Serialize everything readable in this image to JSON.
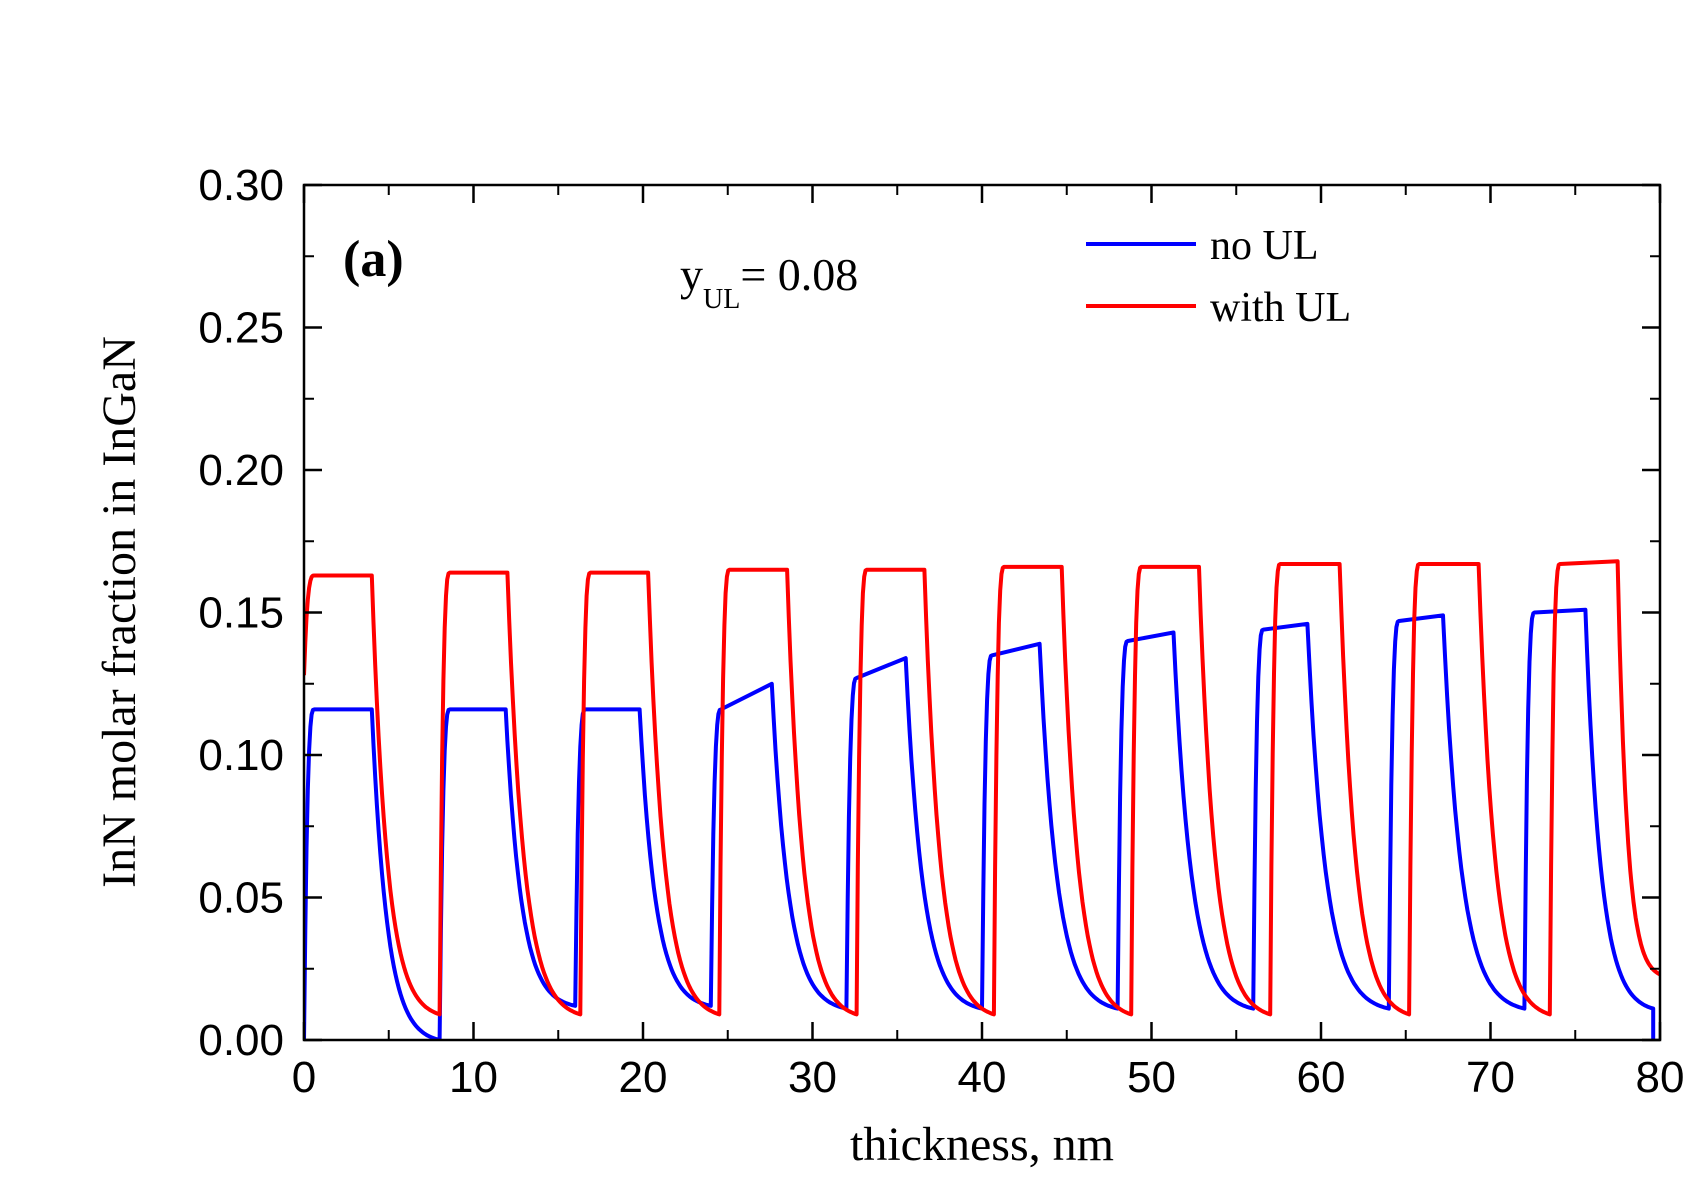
{
  "chart_data": {
    "type": "line",
    "title": "",
    "panel_label": "(a)",
    "annotation": {
      "main": "y",
      "subscript": "UL",
      "rest": "= 0.08"
    },
    "xlabel": "thickness, nm",
    "ylabel": "InN molar fraction in InGaN",
    "xlim": [
      0,
      80
    ],
    "ylim": [
      0,
      0.3
    ],
    "xticks": [
      0,
      10,
      20,
      30,
      40,
      50,
      60,
      70,
      80
    ],
    "xtick_labels": [
      "0",
      "10",
      "20",
      "30",
      "40",
      "50",
      "60",
      "70",
      "80"
    ],
    "yticks": [
      0.0,
      0.05,
      0.1,
      0.15,
      0.2,
      0.25,
      0.3
    ],
    "ytick_labels": [
      "0.00",
      "0.05",
      "0.10",
      "0.15",
      "0.20",
      "0.25",
      "0.30"
    ],
    "grid": false,
    "legend_position": "top-right",
    "series": [
      {
        "name": "no UL",
        "color": "#0000ff",
        "wells": [
          {
            "start": 0.0,
            "end": 4.0,
            "top_start": 0.116,
            "top_end": 0.116,
            "bottom": 0.0
          },
          {
            "start": 8.0,
            "end": 11.9,
            "top_start": 0.116,
            "top_end": 0.116,
            "bottom": 0.012
          },
          {
            "start": 16.0,
            "end": 19.8,
            "top_start": 0.116,
            "top_end": 0.116,
            "bottom": 0.012
          },
          {
            "start": 24.0,
            "end": 27.6,
            "top_start": 0.116,
            "top_end": 0.125,
            "bottom": 0.011
          },
          {
            "start": 32.0,
            "end": 35.5,
            "top_start": 0.127,
            "top_end": 0.134,
            "bottom": 0.011
          },
          {
            "start": 40.0,
            "end": 43.4,
            "top_start": 0.135,
            "top_end": 0.139,
            "bottom": 0.011
          },
          {
            "start": 48.0,
            "end": 51.3,
            "top_start": 0.14,
            "top_end": 0.143,
            "bottom": 0.011
          },
          {
            "start": 56.0,
            "end": 59.2,
            "top_start": 0.144,
            "top_end": 0.146,
            "bottom": 0.011
          },
          {
            "start": 64.0,
            "end": 67.2,
            "top_start": 0.147,
            "top_end": 0.149,
            "bottom": 0.011
          },
          {
            "start": 72.0,
            "end": 75.6,
            "top_start": 0.15,
            "top_end": 0.151,
            "bottom": 0.011
          }
        ],
        "end_x": 79.6,
        "end_value": 0.011
      },
      {
        "name": "with UL",
        "color": "#ff0000",
        "start_value": 0.128,
        "wells": [
          {
            "start": 0.0,
            "end": 4.0,
            "top_start": 0.163,
            "top_end": 0.163,
            "bottom": 0.009
          },
          {
            "start": 8.0,
            "end": 12.0,
            "top_start": 0.164,
            "top_end": 0.164,
            "bottom": 0.009
          },
          {
            "start": 16.3,
            "end": 20.3,
            "top_start": 0.164,
            "top_end": 0.164,
            "bottom": 0.009
          },
          {
            "start": 24.5,
            "end": 28.5,
            "top_start": 0.165,
            "top_end": 0.165,
            "bottom": 0.009
          },
          {
            "start": 32.6,
            "end": 36.6,
            "top_start": 0.165,
            "top_end": 0.165,
            "bottom": 0.009
          },
          {
            "start": 40.7,
            "end": 44.7,
            "top_start": 0.166,
            "top_end": 0.166,
            "bottom": 0.009
          },
          {
            "start": 48.8,
            "end": 52.8,
            "top_start": 0.166,
            "top_end": 0.166,
            "bottom": 0.009
          },
          {
            "start": 57.0,
            "end": 61.1,
            "top_start": 0.167,
            "top_end": 0.167,
            "bottom": 0.009
          },
          {
            "start": 65.2,
            "end": 69.3,
            "top_start": 0.167,
            "top_end": 0.167,
            "bottom": 0.009
          },
          {
            "start": 73.5,
            "end": 77.5,
            "top_start": 0.167,
            "top_end": 0.168,
            "bottom": 0.009
          }
        ],
        "end_x": 80.0,
        "end_value": 0.023
      }
    ]
  }
}
